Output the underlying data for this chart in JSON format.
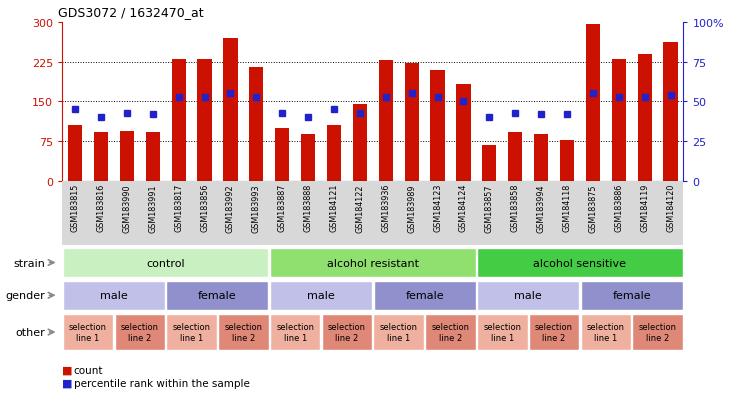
{
  "title": "GDS3072 / 1632470_at",
  "samples": [
    "GSM183815",
    "GSM183816",
    "GSM183990",
    "GSM183991",
    "GSM183817",
    "GSM183856",
    "GSM183992",
    "GSM183993",
    "GSM183887",
    "GSM183888",
    "GSM184121",
    "GSM184122",
    "GSM183936",
    "GSM183989",
    "GSM184123",
    "GSM184124",
    "GSM183857",
    "GSM183858",
    "GSM183994",
    "GSM184118",
    "GSM183875",
    "GSM183886",
    "GSM184119",
    "GSM184120"
  ],
  "bar_values": [
    105,
    93,
    95,
    93,
    230,
    230,
    270,
    215,
    100,
    88,
    105,
    145,
    228,
    222,
    210,
    183,
    68,
    93,
    88,
    78,
    295,
    230,
    240,
    262
  ],
  "dot_values_pct": [
    45,
    40,
    43,
    42,
    53,
    53,
    55,
    53,
    43,
    40,
    45,
    43,
    53,
    55,
    53,
    50,
    40,
    43,
    42,
    42,
    55,
    53,
    53,
    54
  ],
  "bar_color": "#cc1100",
  "dot_color": "#2222cc",
  "left_ylim": [
    0,
    300
  ],
  "right_ylim": [
    0,
    100
  ],
  "left_yticks": [
    0,
    75,
    150,
    225,
    300
  ],
  "right_yticks": [
    0,
    25,
    50,
    75,
    100
  ],
  "hlines": [
    75,
    150,
    225
  ],
  "xtick_bg_color": "#d8d8d8",
  "strain_groups": [
    {
      "label": "control",
      "start": 0,
      "end": 8,
      "color": "#c8f0c0"
    },
    {
      "label": "alcohol resistant",
      "start": 8,
      "end": 16,
      "color": "#90e070"
    },
    {
      "label": "alcohol sensitive",
      "start": 16,
      "end": 24,
      "color": "#44cc44"
    }
  ],
  "gender_groups": [
    {
      "label": "male",
      "start": 0,
      "end": 4,
      "color": "#c0c0e8"
    },
    {
      "label": "female",
      "start": 4,
      "end": 8,
      "color": "#9090cc"
    },
    {
      "label": "male",
      "start": 8,
      "end": 12,
      "color": "#c0c0e8"
    },
    {
      "label": "female",
      "start": 12,
      "end": 16,
      "color": "#9090cc"
    },
    {
      "label": "male",
      "start": 16,
      "end": 20,
      "color": "#c0c0e8"
    },
    {
      "label": "female",
      "start": 20,
      "end": 24,
      "color": "#9090cc"
    }
  ],
  "other_groups": [
    {
      "label": "selection\nline 1",
      "start": 0,
      "end": 2,
      "color": "#f0b0a0"
    },
    {
      "label": "selection\nline 2",
      "start": 2,
      "end": 4,
      "color": "#e08878"
    },
    {
      "label": "selection\nline 1",
      "start": 4,
      "end": 6,
      "color": "#f0b0a0"
    },
    {
      "label": "selection\nline 2",
      "start": 6,
      "end": 8,
      "color": "#e08878"
    },
    {
      "label": "selection\nline 1",
      "start": 8,
      "end": 10,
      "color": "#f0b0a0"
    },
    {
      "label": "selection\nline 2",
      "start": 10,
      "end": 12,
      "color": "#e08878"
    },
    {
      "label": "selection\nline 1",
      "start": 12,
      "end": 14,
      "color": "#f0b0a0"
    },
    {
      "label": "selection\nline 2",
      "start": 14,
      "end": 16,
      "color": "#e08878"
    },
    {
      "label": "selection\nline 1",
      "start": 16,
      "end": 18,
      "color": "#f0b0a0"
    },
    {
      "label": "selection\nline 2",
      "start": 18,
      "end": 20,
      "color": "#e08878"
    },
    {
      "label": "selection\nline 1",
      "start": 20,
      "end": 22,
      "color": "#f0b0a0"
    },
    {
      "label": "selection\nline 2",
      "start": 22,
      "end": 24,
      "color": "#e08878"
    }
  ],
  "row_labels": [
    "strain",
    "gender",
    "other"
  ],
  "arrow_color": "#888888",
  "fig_width": 7.31,
  "fig_height": 4.14,
  "dpi": 100
}
